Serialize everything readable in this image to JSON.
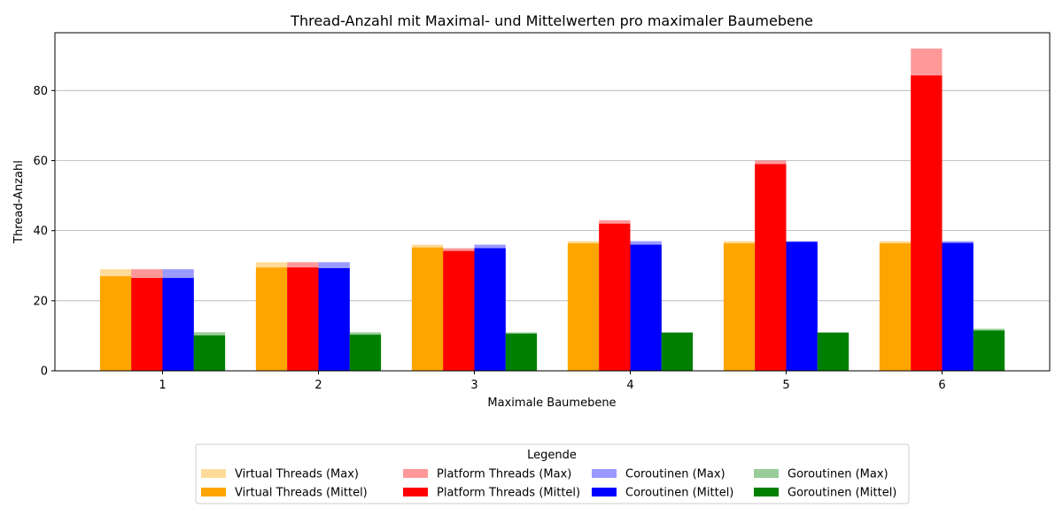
{
  "chart_data": {
    "type": "bar",
    "title": "Thread-Anzahl mit Maximal- und Mittelwerten pro maximaler Baumebene",
    "xlabel": "Maximale Baumebene",
    "ylabel": "Thread-Anzahl",
    "categories": [
      "1",
      "2",
      "3",
      "4",
      "5",
      "6"
    ],
    "ylim": [
      0,
      96.5
    ],
    "yticks": [
      0,
      20,
      40,
      60,
      80
    ],
    "ytick_labels": [
      "0",
      "20",
      "40",
      "60",
      "80"
    ],
    "grid": "y",
    "legend": {
      "title": "Legende",
      "placement": "bottom-center"
    },
    "groups": [
      {
        "color": "#ffa500",
        "max": {
          "name": "Virtual Threads (Max)",
          "values": [
            29,
            31,
            36,
            37,
            37,
            37
          ]
        },
        "mean": {
          "name": "Virtual Threads (Mittel)",
          "values": [
            27,
            29.5,
            35.2,
            36.4,
            36.4,
            36.4
          ]
        }
      },
      {
        "color": "#ff0000",
        "max": {
          "name": "Platform Threads (Max)",
          "values": [
            29,
            31,
            35,
            43,
            60,
            92
          ]
        },
        "mean": {
          "name": "Platform Threads (Mittel)",
          "values": [
            26.5,
            29.5,
            34.2,
            42,
            59,
            84.3
          ]
        }
      },
      {
        "color": "#0000ff",
        "max": {
          "name": "Coroutinen (Max)",
          "values": [
            29,
            31,
            36,
            37,
            37,
            37
          ]
        },
        "mean": {
          "name": "Coroutinen (Mittel)",
          "values": [
            26.5,
            29.3,
            35,
            36,
            36.8,
            36.5
          ]
        }
      },
      {
        "color": "#008000",
        "max": {
          "name": "Goroutinen (Max)",
          "values": [
            11,
            11,
            11,
            11,
            11,
            12
          ]
        },
        "mean": {
          "name": "Goroutinen (Mittel)",
          "values": [
            10.1,
            10.3,
            10.6,
            10.9,
            10.9,
            11.5
          ]
        }
      }
    ]
  }
}
